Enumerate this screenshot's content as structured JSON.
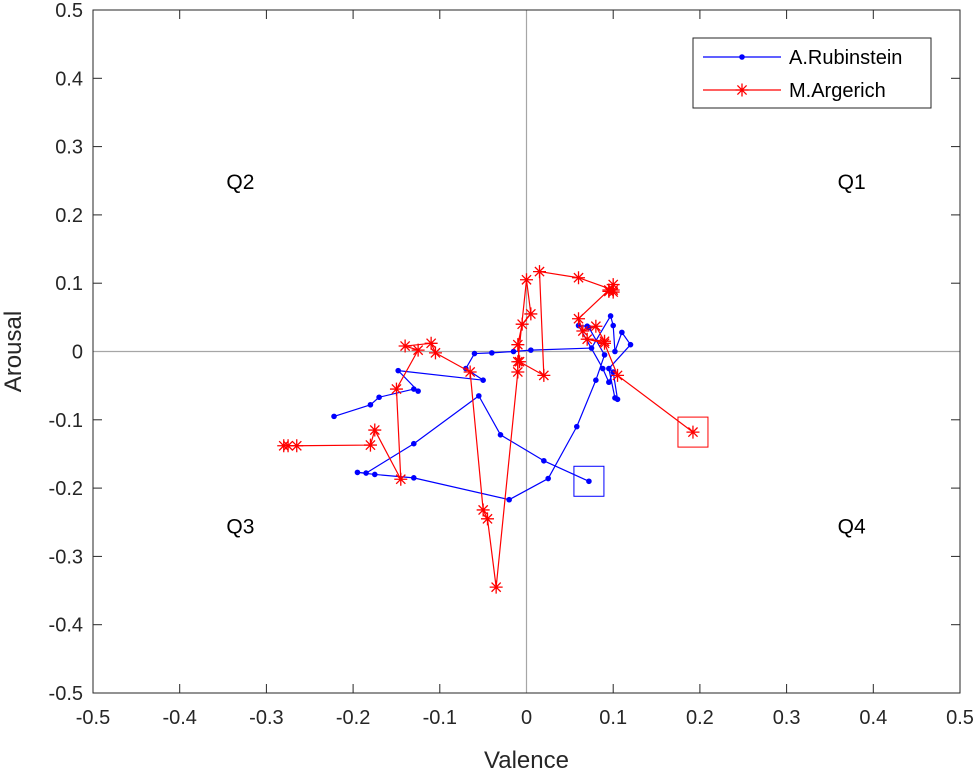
{
  "chart_data": {
    "type": "line",
    "xlabel": "Valence",
    "ylabel": "Arousal",
    "xlim": [
      -0.5,
      0.5
    ],
    "ylim": [
      -0.5,
      0.5
    ],
    "xticks": [
      "-0.5",
      "-0.4",
      "-0.3",
      "-0.2",
      "-0.1",
      "0",
      "0.1",
      "0.2",
      "0.3",
      "0.4",
      "0.5"
    ],
    "yticks": [
      "-0.5",
      "-0.4",
      "-0.3",
      "-0.2",
      "-0.1",
      "0",
      "0.1",
      "0.2",
      "0.3",
      "0.4",
      "0.5"
    ],
    "grid": false,
    "legend_position": "top-right",
    "quadrant_labels": [
      {
        "text": "Q2",
        "x": -0.33,
        "y": 0.25
      },
      {
        "text": "Q1",
        "x": 0.375,
        "y": 0.25
      },
      {
        "text": "Q3",
        "x": -0.33,
        "y": -0.255
      },
      {
        "text": "Q4",
        "x": 0.375,
        "y": -0.255
      }
    ],
    "series": [
      {
        "name": "A.Rubinstein",
        "color": "#0000ff",
        "marker": "dot",
        "x": [
          -0.222,
          -0.18,
          -0.17,
          -0.13,
          -0.125,
          -0.148,
          -0.05,
          -0.07,
          -0.06,
          -0.04,
          -0.015,
          0.005,
          0.075,
          0.097,
          0.1,
          0.102,
          0.11,
          0.12,
          0.095,
          0.102,
          0.105,
          0.1,
          0.095,
          0.088,
          0.06,
          0.07,
          0.072,
          0.09,
          0.08,
          0.058,
          0.025,
          -0.02,
          -0.13,
          -0.175,
          -0.195,
          -0.185,
          -0.13,
          -0.055,
          -0.03,
          0.02,
          0.072
        ],
        "y": [
          -0.095,
          -0.078,
          -0.067,
          -0.055,
          -0.058,
          -0.028,
          -0.042,
          -0.025,
          -0.003,
          -0.002,
          0.0,
          0.002,
          0.005,
          0.052,
          0.038,
          0.0,
          0.028,
          0.01,
          -0.025,
          -0.068,
          -0.07,
          -0.03,
          -0.045,
          -0.025,
          0.038,
          0.037,
          0.035,
          -0.005,
          -0.042,
          -0.11,
          -0.186,
          -0.217,
          -0.185,
          -0.18,
          -0.177,
          -0.178,
          -0.135,
          -0.065,
          -0.122,
          -0.16,
          -0.19
        ]
      },
      {
        "name": "M.Argerich",
        "color": "#ff0000",
        "marker": "star",
        "x": [
          -0.28,
          -0.275,
          -0.265,
          -0.18,
          -0.175,
          -0.145,
          -0.15,
          -0.125,
          -0.14,
          -0.11,
          -0.105,
          -0.065,
          -0.05,
          -0.045,
          -0.035,
          -0.01,
          -0.01,
          0.0,
          0.005,
          -0.005,
          -0.01,
          -0.008,
          0.02,
          0.015,
          0.06,
          0.1,
          0.1,
          0.095,
          0.1,
          0.095,
          0.06,
          0.065,
          0.08,
          0.09,
          0.07,
          0.09,
          0.105,
          0.192
        ],
        "y": [
          -0.138,
          -0.138,
          -0.138,
          -0.137,
          -0.115,
          -0.187,
          -0.055,
          0.002,
          0.008,
          0.012,
          -0.002,
          -0.03,
          -0.232,
          -0.245,
          -0.345,
          -0.03,
          -0.015,
          0.105,
          0.055,
          0.04,
          0.01,
          -0.015,
          -0.035,
          0.117,
          0.108,
          0.09,
          0.098,
          0.088,
          0.087,
          0.09,
          0.048,
          0.03,
          0.037,
          0.015,
          0.018,
          0.012,
          -0.035,
          -0.118
        ]
      }
    ],
    "end_markers": [
      {
        "series": "A.Rubinstein",
        "shape": "square",
        "x": 0.072,
        "y": -0.19
      },
      {
        "series": "M.Argerich",
        "shape": "square",
        "x": 0.192,
        "y": -0.118
      }
    ]
  }
}
